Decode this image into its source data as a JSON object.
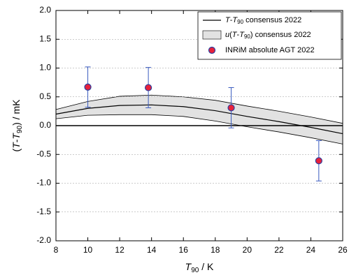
{
  "chart_data": {
    "type": "scatter",
    "xlabel_parts": [
      "T",
      "90",
      " / K"
    ],
    "ylabel_parts": [
      "(",
      "T",
      "-",
      "T",
      "90",
      ") / mK"
    ],
    "xlim": [
      8,
      26
    ],
    "xticks": [
      8,
      10,
      12,
      14,
      16,
      18,
      20,
      22,
      24,
      26
    ],
    "ylim": [
      -2,
      2
    ],
    "yticks": [
      {
        "value": -2,
        "label": "-2.0"
      },
      -1.5,
      {
        "value": -1,
        "label": "-1.0"
      },
      -0.5,
      {
        "value": 0,
        "label": "0.0"
      },
      0.5,
      {
        "value": 1,
        "label": "1.0"
      },
      1.5,
      {
        "value": 2,
        "label": "2.0"
      }
    ],
    "grid": true,
    "hline": 0,
    "legend_position": "upper right",
    "consensus": {
      "legend_parts": [
        "T",
        "-",
        "T",
        "90",
        " consensus 2022"
      ],
      "color": "#000000",
      "x": [
        8,
        10,
        12,
        14,
        16,
        18,
        20,
        22,
        24,
        26
      ],
      "values": [
        0.2,
        0.3,
        0.35,
        0.36,
        0.33,
        0.26,
        0.16,
        0.07,
        -0.03,
        -0.14
      ]
    },
    "uncertainty": {
      "legend_parts": [
        "u",
        "(",
        "T",
        "-",
        "T",
        "90",
        ") consensus 2022"
      ],
      "color": "#e2e2e2",
      "x": [
        8,
        10,
        12,
        14,
        16,
        18,
        20,
        22,
        24,
        26
      ],
      "lower": [
        0.12,
        0.18,
        0.19,
        0.19,
        0.16,
        0.08,
        -0.02,
        -0.11,
        -0.21,
        -0.32
      ],
      "upper": [
        0.28,
        0.42,
        0.51,
        0.53,
        0.5,
        0.44,
        0.34,
        0.25,
        0.15,
        0.04
      ]
    },
    "points": {
      "name": "INRiM absolute AGT 2022",
      "color": "#e8213a",
      "edge_color": "#2b3fa0",
      "x": [
        10,
        13.8,
        19,
        24.5
      ],
      "values": [
        0.67,
        0.66,
        0.31,
        -0.61
      ],
      "errors": [
        0.35,
        0.35,
        0.35,
        0.35
      ]
    }
  }
}
